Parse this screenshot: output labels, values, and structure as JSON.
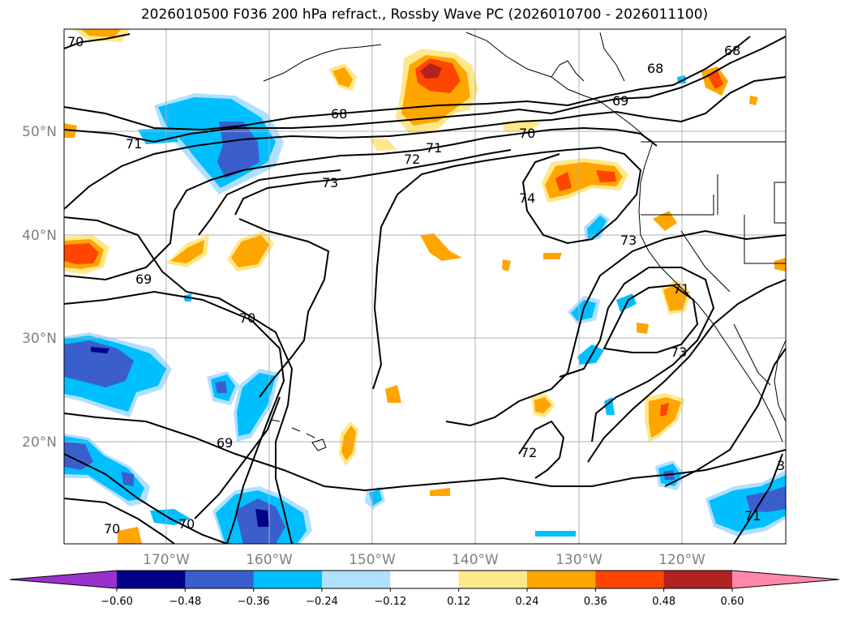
{
  "title": "2026010500 F036 200 hPa refract., Rossby Wave PC (2026010700 - 2026011100)",
  "map": {
    "lon_ticks": [
      "170°W",
      "160°W",
      "150°W",
      "140°W",
      "130°W",
      "120°W"
    ],
    "lat_ticks": [
      "50°N",
      "40°N",
      "30°N",
      "20°N"
    ],
    "contour_labels": [
      "70",
      "68",
      "68",
      "68",
      "69",
      "71",
      "70",
      "71",
      "72",
      "73",
      "74",
      "73",
      "69",
      "70",
      "69",
      "73",
      "72",
      "70",
      "70",
      "71",
      "71",
      "3"
    ]
  },
  "colorbar": {
    "ticks": [
      "−0.60",
      "−0.48",
      "−0.36",
      "−0.24",
      "−0.12",
      "0.12",
      "0.24",
      "0.36",
      "0.48",
      "0.60"
    ],
    "colors": [
      "#9932cc",
      "#00008b",
      "#3a5fcd",
      "#00bfff",
      "#b0e0ff",
      "#ffffff",
      "#ffe88a",
      "#ffa500",
      "#ff4500",
      "#b22222",
      "#ff88aa"
    ]
  },
  "colors": {
    "blue_light": "#b0e0ff",
    "blue": "#00bfff",
    "blue_mid": "#3a5fcd",
    "blue_dark": "#00008b",
    "yellow": "#ffe88a",
    "orange": "#ffa500",
    "red_orange": "#ff4500",
    "dark_red": "#b22222"
  }
}
